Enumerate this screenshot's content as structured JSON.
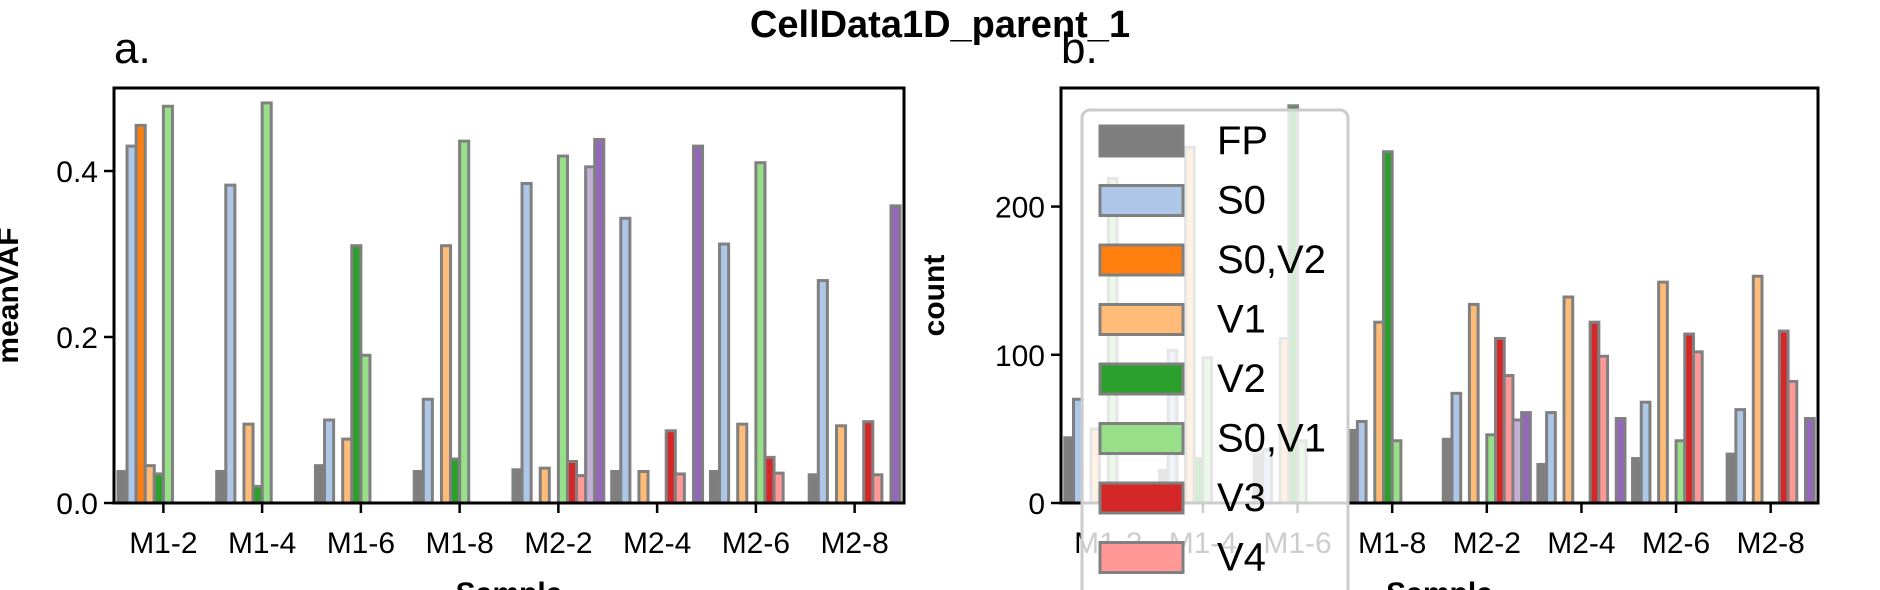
{
  "figure": {
    "title": "CellData1D_parent_1"
  },
  "series_styles": [
    {
      "name": "FP",
      "color": "#7f7f7f"
    },
    {
      "name": "S0",
      "color": "#aec7e8"
    },
    {
      "name": "S0,V2",
      "color": "#ff7f0e"
    },
    {
      "name": "V1",
      "color": "#ffbb78"
    },
    {
      "name": "V2",
      "color": "#2ca02c"
    },
    {
      "name": "S0,V1",
      "color": "#98df8a"
    },
    {
      "name": "V3",
      "color": "#d62728"
    },
    {
      "name": "V4",
      "color": "#ff9896"
    },
    {
      "name": "",
      "color": "#c5b0d5"
    },
    {
      "name": "",
      "color": "#9467bd"
    }
  ],
  "edge_color": "#808080",
  "chart_data": [
    {
      "type": "bar",
      "panel_label": "a.",
      "xlabel": "Sample",
      "ylabel": "meanVAF",
      "categories": [
        "M1-2",
        "M1-4",
        "M1-6",
        "M1-8",
        "M2-2",
        "M2-4",
        "M2-6",
        "M2-8"
      ],
      "ylim": [
        0,
        0.5
      ],
      "yticks": [
        0.0,
        0.2,
        0.4
      ],
      "ytick_labels": [
        "0.0",
        "0.2",
        "0.4"
      ],
      "grid": false,
      "series": [
        {
          "values": [
            0.038,
            0.038,
            0.045,
            0.038,
            0.04,
            0.038,
            0.038,
            0.034
          ]
        },
        {
          "values": [
            0.43,
            0.383,
            0.1,
            0.125,
            0.385,
            0.343,
            0.312,
            0.268
          ]
        },
        {
          "values": [
            0.455,
            null,
            null,
            null,
            null,
            null,
            null,
            null
          ]
        },
        {
          "values": [
            0.045,
            0.095,
            0.077,
            0.31,
            0.042,
            0.038,
            0.095,
            0.093
          ]
        },
        {
          "values": [
            0.035,
            0.02,
            0.31,
            0.053,
            null,
            null,
            null,
            null
          ]
        },
        {
          "values": [
            0.478,
            0.482,
            0.178,
            0.436,
            0.418,
            null,
            0.41,
            null
          ]
        },
        {
          "values": [
            null,
            null,
            null,
            null,
            0.05,
            0.087,
            0.055,
            0.098
          ]
        },
        {
          "values": [
            null,
            null,
            null,
            null,
            0.033,
            0.035,
            0.036,
            0.034
          ]
        },
        {
          "values": [
            null,
            null,
            null,
            null,
            0.405,
            null,
            null,
            null
          ]
        },
        {
          "values": [
            null,
            null,
            null,
            null,
            0.438,
            0.43,
            null,
            0.358
          ]
        }
      ]
    },
    {
      "type": "bar",
      "panel_label": "b.",
      "xlabel": "Sample",
      "ylabel": "count",
      "categories": [
        "M1-2",
        "M1-4",
        "M1-6",
        "M1-8",
        "M2-2",
        "M2-4",
        "M2-6",
        "M2-8"
      ],
      "ylim": [
        0,
        280
      ],
      "yticks": [
        0,
        100,
        200
      ],
      "ytick_labels": [
        "0",
        "100",
        "200"
      ],
      "grid": false,
      "legend": {
        "placement": "upper-left",
        "entries": [
          "FP",
          "S0",
          "S0,V2",
          "V1",
          "V2",
          "S0,V1",
          "V3",
          "V4"
        ]
      },
      "series": [
        {
          "values": [
            44,
            22,
            33,
            49,
            43,
            26,
            30,
            33
          ]
        },
        {
          "values": [
            70,
            103,
            36,
            55,
            74,
            61,
            68,
            63
          ]
        },
        {
          "values": [
            null,
            null,
            null,
            null,
            null,
            null,
            null,
            null
          ]
        },
        {
          "values": [
            50,
            240,
            111,
            122,
            134,
            139,
            149,
            153
          ]
        },
        {
          "values": [
            null,
            30,
            268,
            237,
            null,
            null,
            null,
            null
          ]
        },
        {
          "values": [
            219,
            98,
            42,
            42,
            46,
            null,
            42,
            null
          ]
        },
        {
          "values": [
            null,
            null,
            null,
            null,
            111,
            122,
            114,
            116
          ]
        },
        {
          "values": [
            null,
            null,
            null,
            null,
            86,
            99,
            102,
            82
          ]
        },
        {
          "values": [
            null,
            null,
            null,
            null,
            56,
            null,
            null,
            null
          ]
        },
        {
          "values": [
            null,
            null,
            null,
            null,
            61,
            57,
            null,
            57
          ]
        }
      ]
    }
  ]
}
